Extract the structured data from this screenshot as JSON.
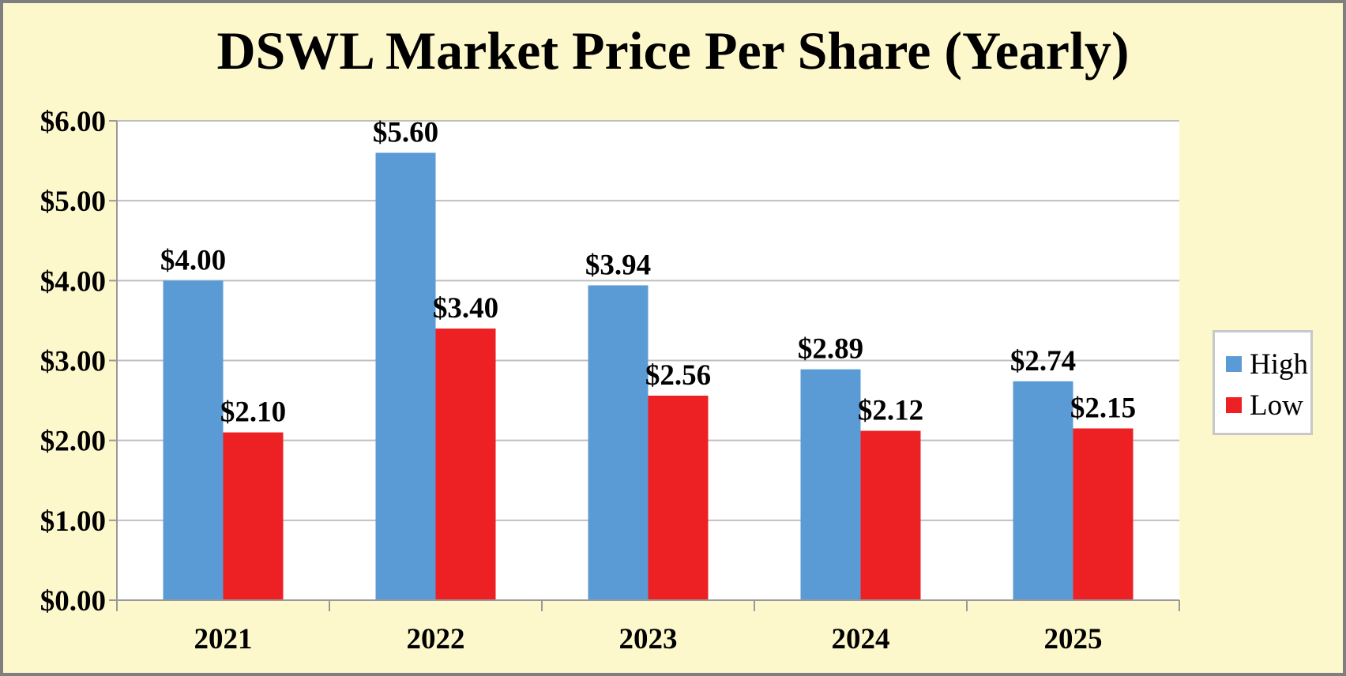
{
  "chart_data": {
    "type": "bar",
    "title": "DSWL Market Price Per Share (Yearly)",
    "xlabel": "",
    "ylabel": "",
    "categories": [
      "2021",
      "2022",
      "2023",
      "2024",
      "2025"
    ],
    "series": [
      {
        "name": "High",
        "color": "#5b9bd5",
        "values": [
          4.0,
          5.6,
          3.94,
          2.89,
          2.74
        ],
        "labels": [
          "$4.00",
          "$5.60",
          "$3.94",
          "$2.89",
          "$2.74"
        ]
      },
      {
        "name": "Low",
        "color": "#ed2024",
        "values": [
          2.1,
          3.4,
          2.56,
          2.12,
          2.15
        ],
        "labels": [
          "$2.10",
          "$3.40",
          "$2.56",
          "$2.12",
          "$2.15"
        ]
      }
    ],
    "ylim": [
      0,
      6
    ],
    "yticks": [
      0,
      1,
      2,
      3,
      4,
      5,
      6
    ],
    "ytick_labels": [
      "$0.00",
      "$1.00",
      "$2.00",
      "$3.00",
      "$4.00",
      "$5.00",
      "$6.00"
    ],
    "grid": true,
    "legend_position": "right",
    "colors": {
      "background": "#fdf8cc",
      "plot_area": "#ffffff",
      "frame_border": "#7f7f7f",
      "gridline": "#bfbfbf"
    }
  }
}
